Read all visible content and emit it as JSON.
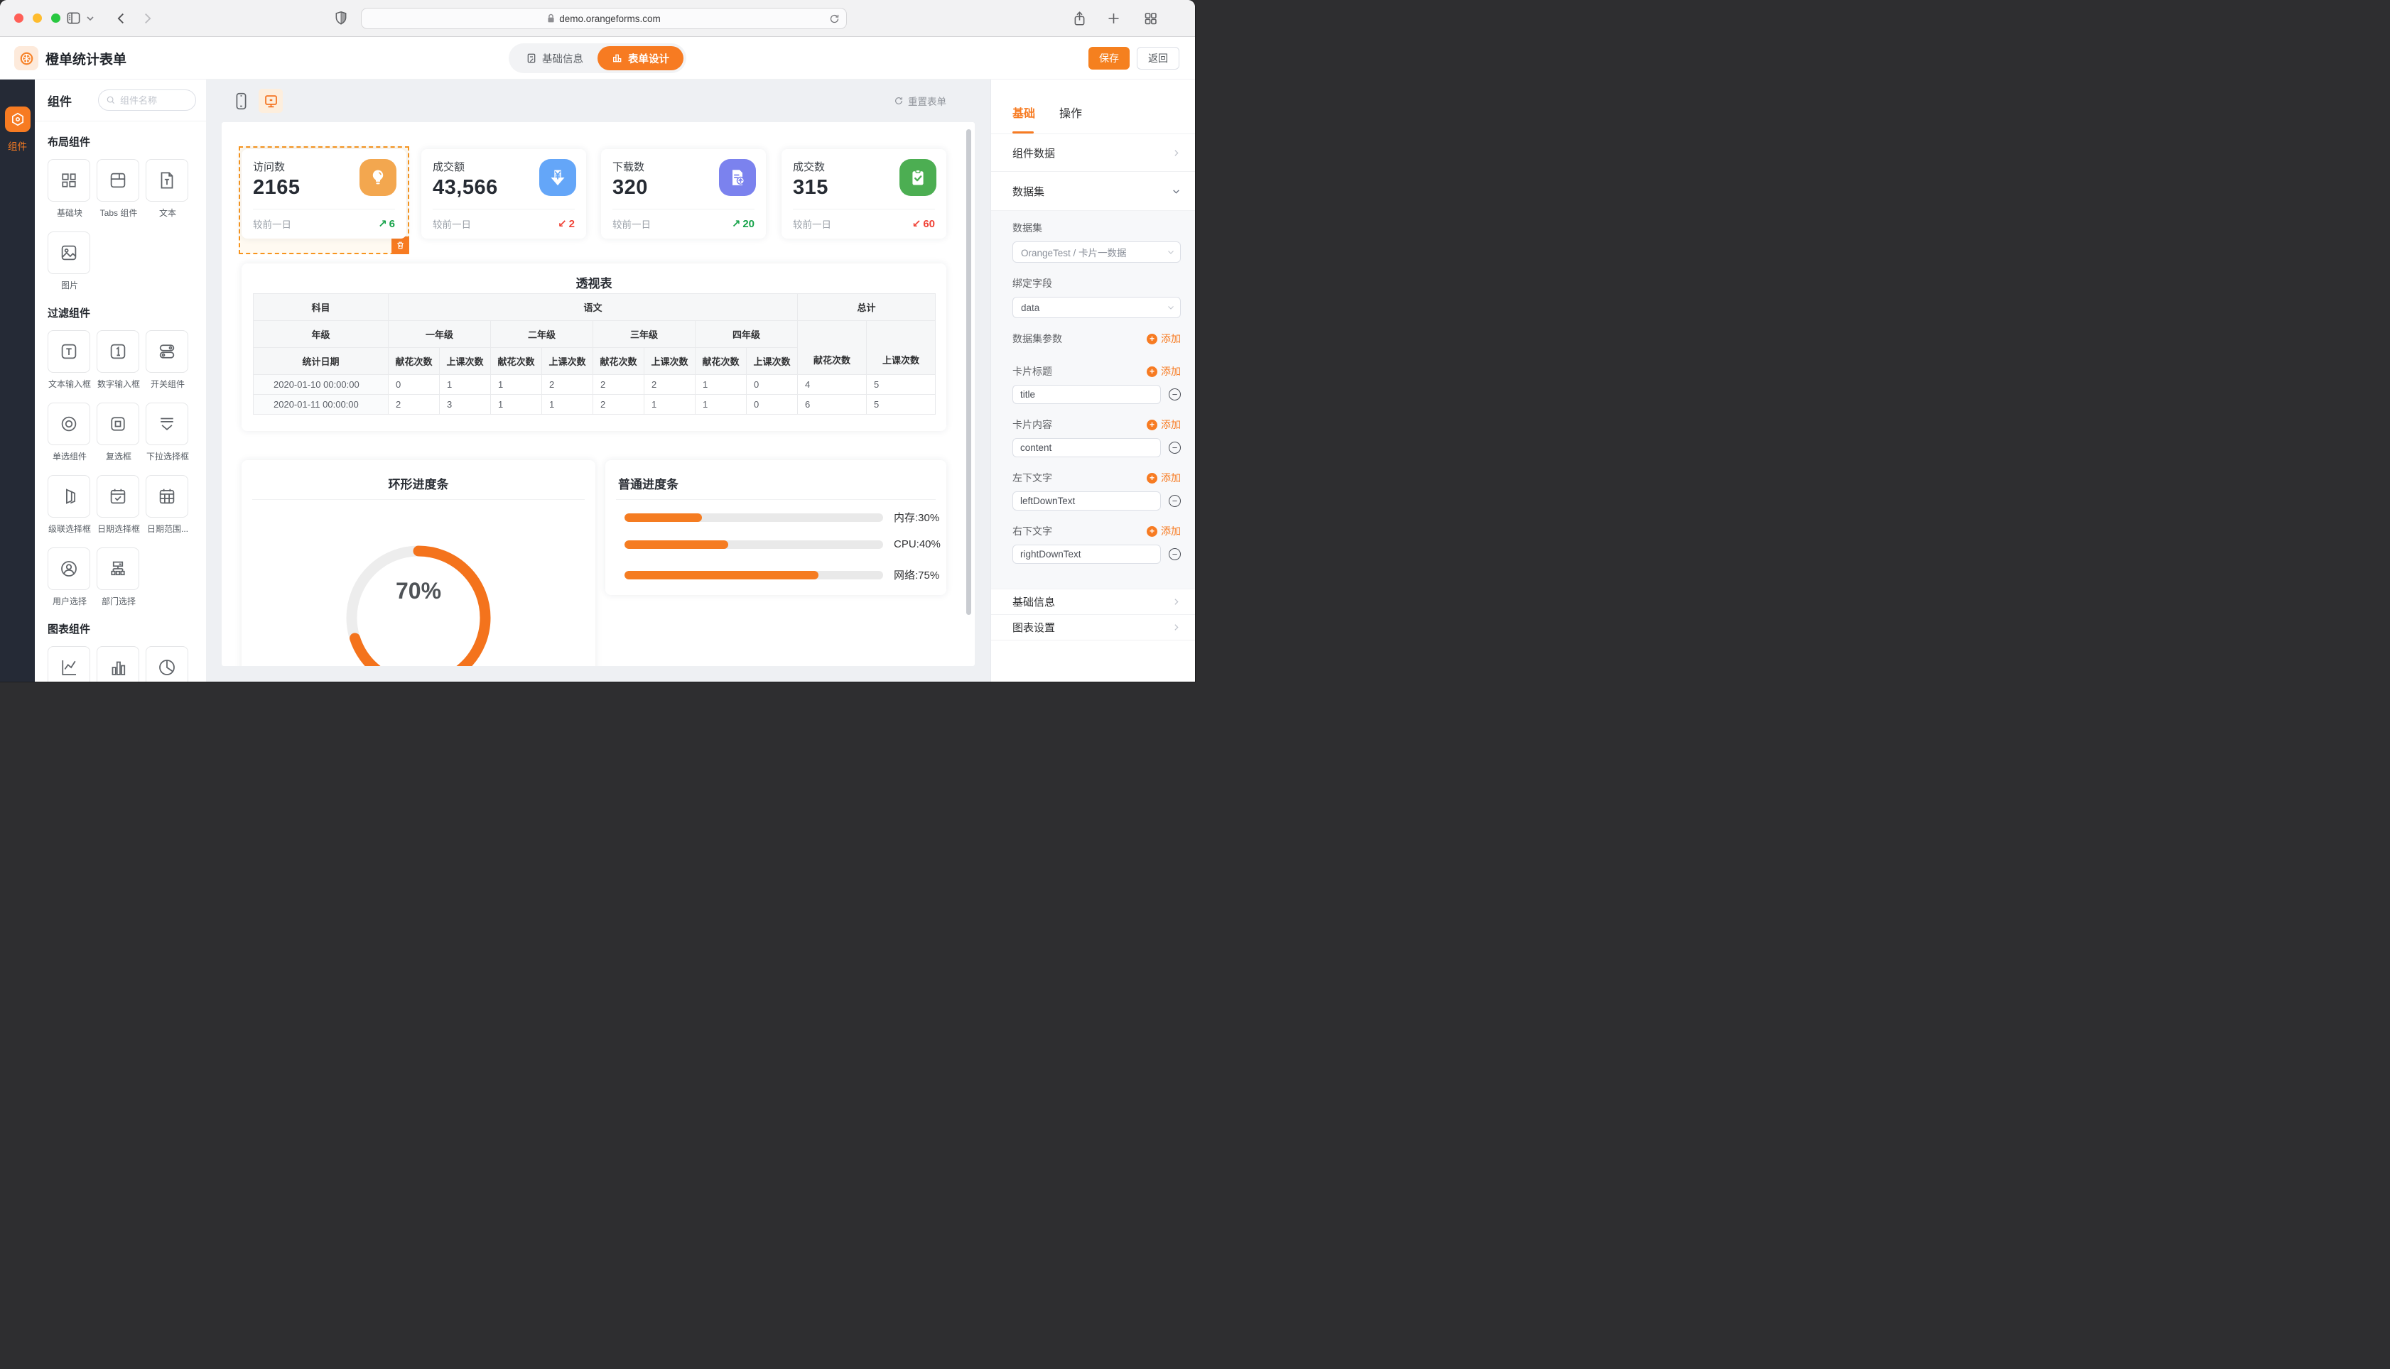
{
  "browser": {
    "url": "demo.orangeforms.com"
  },
  "header": {
    "title": "橙单统计表单",
    "nav": [
      {
        "label": "基础信息",
        "active": false
      },
      {
        "label": "表单设计",
        "active": true
      }
    ],
    "save_label": "保存",
    "back_label": "返回"
  },
  "rail": {
    "active_label": "组件"
  },
  "panel": {
    "title": "组件",
    "search_placeholder": "组件名称",
    "sections": [
      {
        "title": "布局组件",
        "items": [
          {
            "label": "基础块",
            "icon": "blocks-icon"
          },
          {
            "label": "Tabs 组件",
            "icon": "tabs-icon"
          },
          {
            "label": "文本",
            "icon": "text-doc-icon"
          },
          {
            "label": "图片",
            "icon": "image-icon"
          }
        ]
      },
      {
        "title": "过滤组件",
        "items": [
          {
            "label": "文本输入框",
            "icon": "text-input-icon"
          },
          {
            "label": "数字输入框",
            "icon": "number-input-icon"
          },
          {
            "label": "开关组件",
            "icon": "switch-icon"
          },
          {
            "label": "单选组件",
            "icon": "radio-icon"
          },
          {
            "label": "复选框",
            "icon": "checkbox-icon"
          },
          {
            "label": "下拉选择框",
            "icon": "select-icon"
          },
          {
            "label": "级联选择框",
            "icon": "cascade-icon"
          },
          {
            "label": "日期选择框",
            "icon": "date-icon"
          },
          {
            "label": "日期范围...",
            "icon": "daterange-icon"
          },
          {
            "label": "用户选择",
            "icon": "user-icon"
          },
          {
            "label": "部门选择",
            "icon": "dept-icon"
          }
        ]
      },
      {
        "title": "图表组件",
        "items": [
          {
            "label": "",
            "icon": "line-chart-icon"
          },
          {
            "label": "",
            "icon": "bar-chart-icon"
          },
          {
            "label": "",
            "icon": "pie-chart-icon"
          }
        ]
      }
    ]
  },
  "canvas": {
    "reset_label": "重置表单",
    "accent": "#f77b22",
    "trend_colors": {
      "up": "#17a34a",
      "down": "#f04438"
    },
    "cards": [
      {
        "title": "访问数",
        "value": "2165",
        "footer": "较前一日",
        "delta": "6",
        "trend": "up",
        "icon": "bulb-icon",
        "icon_bg": "#f3a74f",
        "selected": true
      },
      {
        "title": "成交额",
        "value": "43,566",
        "footer": "较前一日",
        "delta": "2",
        "trend": "down",
        "icon": "yen-down-icon",
        "icon_bg": "#64a6f8",
        "selected": false
      },
      {
        "title": "下载数",
        "value": "320",
        "footer": "较前一日",
        "delta": "20",
        "trend": "up",
        "icon": "doc-upload-icon",
        "icon_bg": "#7b82ee",
        "selected": false
      },
      {
        "title": "成交数",
        "value": "315",
        "footer": "较前一日",
        "delta": "60",
        "trend": "down",
        "icon": "clipboard-check-icon",
        "icon_bg": "#4cae52",
        "selected": false
      }
    ],
    "pivot": {
      "title": "透视表",
      "corner_label": "科目",
      "group_label": "语文",
      "total_label": "总计",
      "row2_label": "年级",
      "grades": [
        "一年级",
        "二年级",
        "三年级",
        "四年级"
      ],
      "metric_a": "献花次数",
      "metric_b": "上课次数",
      "date_label": "统计日期",
      "rows": [
        {
          "date": "2020-01-10 00:00:00",
          "values": [
            "0",
            "1",
            "1",
            "2",
            "2",
            "2",
            "1",
            "0",
            "4",
            "5"
          ]
        },
        {
          "date": "2020-01-11 00:00:00",
          "values": [
            "2",
            "3",
            "1",
            "1",
            "2",
            "1",
            "1",
            "0",
            "6",
            "5"
          ]
        }
      ]
    },
    "ring": {
      "title": "环形进度条",
      "percent": 70,
      "label": "70%",
      "color": "#f4731c",
      "track": "#ededed"
    },
    "progress": {
      "title": "普通进度条",
      "bar_color": "#f57c21",
      "bars": [
        {
          "label": "内存:30%",
          "value": 30
        },
        {
          "label": "CPU:40%",
          "value": 40
        },
        {
          "label": "网络:75%",
          "value": 75
        }
      ]
    }
  },
  "inspector": {
    "tabs": [
      {
        "label": "基础",
        "active": true
      },
      {
        "label": "操作",
        "active": false
      }
    ],
    "component_data_label": "组件数据",
    "dataset_section_label": "数据集",
    "dataset_label": "数据集",
    "dataset_value": "OrangeTest / 卡片一数据",
    "bind_field_label": "绑定字段",
    "bind_field_value": "data",
    "param_label": "数据集参数",
    "add_label": "添加",
    "groups": [
      {
        "label": "卡片标题",
        "value": "title"
      },
      {
        "label": "卡片内容",
        "value": "content"
      },
      {
        "label": "左下文字",
        "value": "leftDownText"
      },
      {
        "label": "右下文字",
        "value": "rightDownText"
      }
    ],
    "basic_info_label": "基础信息",
    "chart_settings_label": "图表设置"
  }
}
